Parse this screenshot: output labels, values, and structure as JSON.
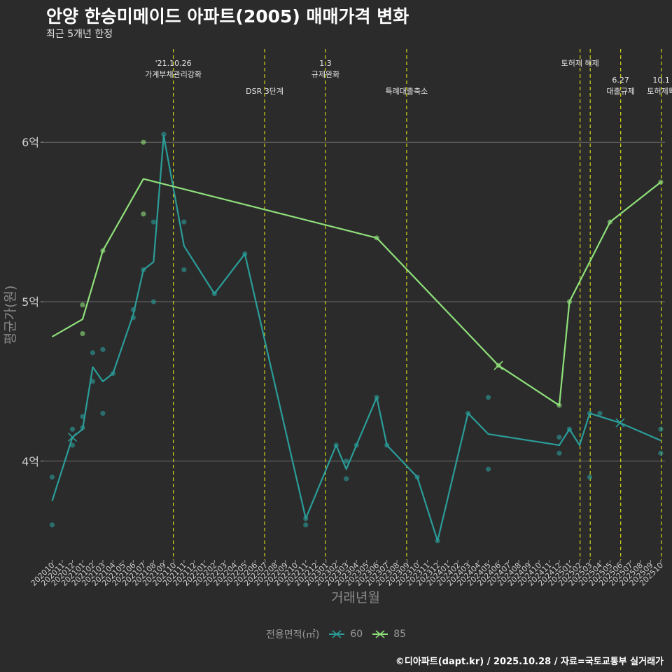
{
  "chart_data": {
    "type": "line",
    "title": "안양 한승미메이드 아파트(2005) 매매가격 변화",
    "subtitle": "최근 5개년 한정",
    "xlabel": "거래년월",
    "ylabel": "평균가(원)",
    "yticks": [
      {
        "value": 4,
        "label": "4억"
      },
      {
        "value": 5,
        "label": "5억"
      },
      {
        "value": 6,
        "label": "6억"
      }
    ],
    "ylim": [
      3.38,
      6.62
    ],
    "categories": [
      "202010",
      "202011",
      "202012",
      "202101",
      "202102",
      "202103",
      "202104",
      "202105",
      "202106",
      "202107",
      "202108",
      "202109",
      "202110",
      "202111",
      "202112",
      "202201",
      "202202",
      "202203",
      "202204",
      "202205",
      "202206",
      "202207",
      "202208",
      "202209",
      "202210",
      "202211",
      "202212",
      "202301",
      "202302",
      "202303",
      "202304",
      "202305",
      "202306",
      "202307",
      "202308",
      "202309",
      "202310",
      "202311",
      "202312",
      "202401",
      "202402",
      "202403",
      "202404",
      "202405",
      "202406",
      "202407",
      "202408",
      "202409",
      "202410",
      "202411",
      "202412",
      "202501",
      "202502",
      "202503",
      "202504",
      "202505",
      "202506",
      "202507",
      "202508",
      "202509",
      "202510"
    ],
    "legend_title": "전용면적(㎡)",
    "series": [
      {
        "name": "60",
        "color": "#2a9d99",
        "line": [
          {
            "x": "202010",
            "y": 3.75
          },
          {
            "x": "202012",
            "y": 4.15
          },
          {
            "x": "202101",
            "y": 4.2
          },
          {
            "x": "202102",
            "y": 4.59
          },
          {
            "x": "202103",
            "y": 4.5
          },
          {
            "x": "202104",
            "y": 4.55
          },
          {
            "x": "202106",
            "y": 4.92
          },
          {
            "x": "202107",
            "y": 5.2
          },
          {
            "x": "202108",
            "y": 5.25
          },
          {
            "x": "202109",
            "y": 6.04
          },
          {
            "x": "202111",
            "y": 5.35
          },
          {
            "x": "202202",
            "y": 5.05
          },
          {
            "x": "202205",
            "y": 5.3
          },
          {
            "x": "202211",
            "y": 3.64
          },
          {
            "x": "202302",
            "y": 4.1
          },
          {
            "x": "202303",
            "y": 3.95
          },
          {
            "x": "202304",
            "y": 4.1
          },
          {
            "x": "202306",
            "y": 4.4
          },
          {
            "x": "202307",
            "y": 4.1
          },
          {
            "x": "202310",
            "y": 3.9
          },
          {
            "x": "202312",
            "y": 3.5
          },
          {
            "x": "202403",
            "y": 4.3
          },
          {
            "x": "202405",
            "y": 4.17
          },
          {
            "x": "202412",
            "y": 4.1
          },
          {
            "x": "202501",
            "y": 4.2
          },
          {
            "x": "202502",
            "y": 4.1
          },
          {
            "x": "202503",
            "y": 4.3
          },
          {
            "x": "202506",
            "y": 4.24
          },
          {
            "x": "202510",
            "y": 4.13
          }
        ],
        "points": [
          {
            "x": "202010",
            "y": 3.9
          },
          {
            "x": "202010",
            "y": 3.6
          },
          {
            "x": "202012",
            "y": 4.2
          },
          {
            "x": "202012",
            "y": 4.1
          },
          {
            "x": "202101",
            "y": 4.28
          },
          {
            "x": "202101",
            "y": 4.21
          },
          {
            "x": "202102",
            "y": 4.68
          },
          {
            "x": "202102",
            "y": 4.5
          },
          {
            "x": "202103",
            "y": 4.7
          },
          {
            "x": "202103",
            "y": 4.3
          },
          {
            "x": "202104",
            "y": 4.55
          },
          {
            "x": "202106",
            "y": 4.95
          },
          {
            "x": "202106",
            "y": 4.9
          },
          {
            "x": "202107",
            "y": 5.2
          },
          {
            "x": "202108",
            "y": 5.5
          },
          {
            "x": "202108",
            "y": 5.0
          },
          {
            "x": "202109",
            "y": 6.05
          },
          {
            "x": "202111",
            "y": 5.5
          },
          {
            "x": "202111",
            "y": 5.2
          },
          {
            "x": "202202",
            "y": 5.05
          },
          {
            "x": "202205",
            "y": 5.3
          },
          {
            "x": "202211",
            "y": 3.6
          },
          {
            "x": "202211",
            "y": 3.64
          },
          {
            "x": "202302",
            "y": 4.1
          },
          {
            "x": "202303",
            "y": 4.0
          },
          {
            "x": "202303",
            "y": 3.89
          },
          {
            "x": "202304",
            "y": 4.1
          },
          {
            "x": "202306",
            "y": 4.4
          },
          {
            "x": "202307",
            "y": 4.1
          },
          {
            "x": "202310",
            "y": 3.9
          },
          {
            "x": "202312",
            "y": 3.5
          },
          {
            "x": "202403",
            "y": 4.3
          },
          {
            "x": "202405",
            "y": 4.4
          },
          {
            "x": "202405",
            "y": 3.95
          },
          {
            "x": "202412",
            "y": 4.15
          },
          {
            "x": "202412",
            "y": 4.05
          },
          {
            "x": "202501",
            "y": 4.2
          },
          {
            "x": "202503",
            "y": 4.3
          },
          {
            "x": "202503",
            "y": 3.9
          },
          {
            "x": "202504",
            "y": 4.3
          },
          {
            "x": "202510",
            "y": 4.2
          },
          {
            "x": "202510",
            "y": 4.05
          }
        ]
      },
      {
        "name": "85",
        "color": "#8fe07a",
        "line": [
          {
            "x": "202010",
            "y": 4.78
          },
          {
            "x": "202101",
            "y": 4.89
          },
          {
            "x": "202103",
            "y": 5.32
          },
          {
            "x": "202107",
            "y": 5.77
          },
          {
            "x": "202306",
            "y": 5.4
          },
          {
            "x": "202406",
            "y": 4.6
          },
          {
            "x": "202412",
            "y": 4.35
          },
          {
            "x": "202501",
            "y": 5.0
          },
          {
            "x": "202505",
            "y": 5.5
          },
          {
            "x": "202510",
            "y": 5.75
          }
        ],
        "points": [
          {
            "x": "202101",
            "y": 4.98
          },
          {
            "x": "202101",
            "y": 4.8
          },
          {
            "x": "202103",
            "y": 5.32
          },
          {
            "x": "202107",
            "y": 6.0
          },
          {
            "x": "202107",
            "y": 5.55
          },
          {
            "x": "202306",
            "y": 5.4
          },
          {
            "x": "202406",
            "y": 4.6
          },
          {
            "x": "202412",
            "y": 4.35
          },
          {
            "x": "202501",
            "y": 5.0
          },
          {
            "x": "202505",
            "y": 5.5
          },
          {
            "x": "202510",
            "y": 5.75
          }
        ]
      }
    ],
    "annotations": [
      {
        "x": 11.95,
        "lines": [
          "'21.10.26",
          "가계부채관리강화"
        ],
        "tier": 1
      },
      {
        "x": 20.95,
        "lines": [
          "DSR 3단계"
        ],
        "tier": 2
      },
      {
        "x": 26.95,
        "lines": [
          "1.3",
          "규제완화"
        ],
        "tier": 1
      },
      {
        "x": 34.95,
        "lines": [
          "특례대출축소"
        ],
        "tier": 2
      },
      {
        "x": 52.05,
        "lines": [
          "토허제 해제"
        ],
        "tier": 1
      },
      {
        "x": 53.05,
        "lines": [],
        "tier": 1
      },
      {
        "x": 56.05,
        "lines": [
          "6.27",
          "대출규제"
        ],
        "tier": 2
      },
      {
        "x": 60.05,
        "lines": [
          "10.1",
          "토허제확"
        ],
        "tier": 2
      }
    ]
  },
  "legend": {
    "title": "전용면적(㎡)",
    "items": [
      "60",
      "85"
    ]
  },
  "caption": "©디아파트(dapt.kr) / 2025.10.28 / 자료=국토교통부 실거래가"
}
